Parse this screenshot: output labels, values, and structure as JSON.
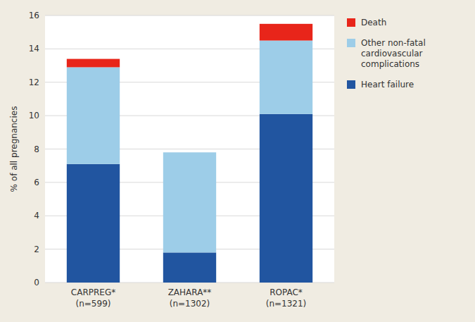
{
  "chart_data": {
    "type": "bar",
    "stacked": true,
    "categories": [
      "CARPREG*\n(n=599)",
      "ZAHARA**\n(n=1302)",
      "ROPAC*\n(n=1321)"
    ],
    "series": [
      {
        "name": "Heart failure",
        "color": "#2155a0",
        "values": [
          7.1,
          1.8,
          10.1
        ]
      },
      {
        "name": "Other non-fatal\ncardiovascular\ncomplications",
        "color": "#9dcde8",
        "values": [
          5.8,
          6.0,
          4.4
        ]
      },
      {
        "name": "Death",
        "color": "#e8251a",
        "values": [
          0.5,
          0.0,
          1.0
        ]
      }
    ],
    "ylabel": "% of all pregnancies",
    "ylim": [
      0,
      16
    ],
    "yticks": [
      0,
      2,
      4,
      6,
      8,
      10,
      12,
      14,
      16
    ],
    "grid": true,
    "legend": "right"
  }
}
